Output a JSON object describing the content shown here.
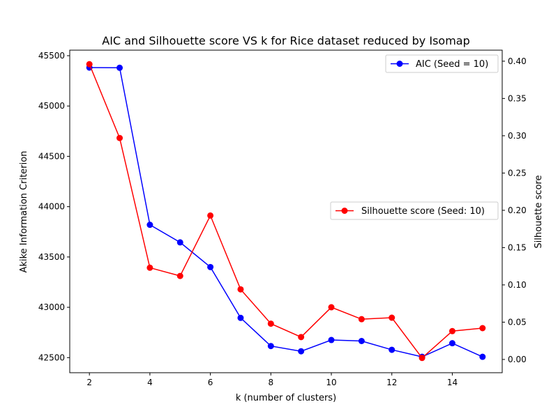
{
  "chart_data": {
    "type": "line",
    "title": "AIC and Silhouette score VS k for Rice dataset reduced by Isomap",
    "xlabel": "k (number of clusters)",
    "ylabel_left": "Akike Information Criterion",
    "ylabel_right": "Silhouette score",
    "x": [
      2,
      3,
      4,
      5,
      6,
      7,
      8,
      9,
      10,
      11,
      12,
      13,
      14,
      15
    ],
    "xlim": [
      1.35,
      15.65
    ],
    "xticks": [
      2,
      4,
      6,
      8,
      10,
      12,
      14
    ],
    "ylim_left": [
      42350,
      45555
    ],
    "yticks_left": [
      42500,
      43000,
      43500,
      44000,
      44500,
      45000,
      45500
    ],
    "ylim_right": [
      -0.0178,
      0.4148
    ],
    "yticks_right": [
      0.0,
      0.05,
      0.1,
      0.15,
      0.2,
      0.25,
      0.3,
      0.35,
      0.4
    ],
    "series": [
      {
        "name": "AIC (Seed = 10)",
        "axis": "left",
        "color": "#0000ff",
        "legend_position": "upper-right",
        "values": [
          45382,
          45380,
          43820,
          43645,
          43400,
          42895,
          42615,
          42563,
          42675,
          42665,
          42578,
          42508,
          42643,
          42508
        ]
      },
      {
        "name": "Silhouette score (Seed: 10)",
        "axis": "right",
        "color": "#ff0000",
        "legend_position": "center-right",
        "values": [
          0.396,
          0.297,
          0.123,
          0.112,
          0.193,
          0.094,
          0.048,
          0.03,
          0.07,
          0.054,
          0.056,
          0.002,
          0.038,
          0.042
        ]
      }
    ]
  }
}
